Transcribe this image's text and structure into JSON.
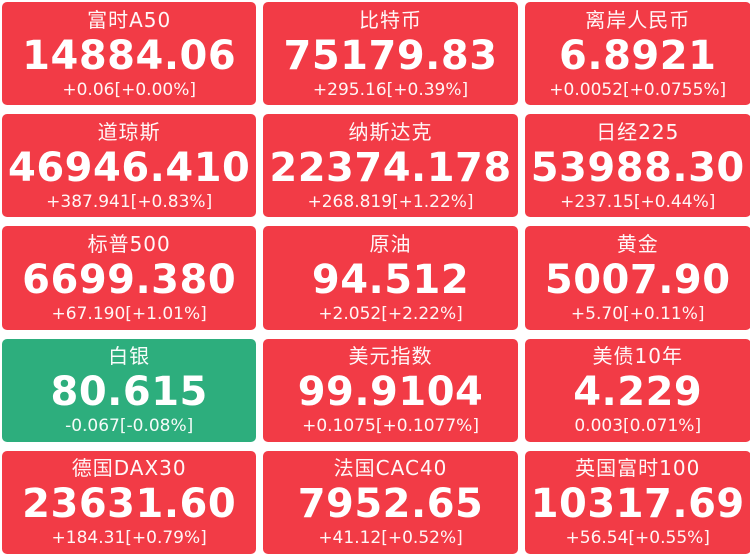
{
  "colors": {
    "up": "#f23b46",
    "down": "#2dae7d",
    "text": "#ffffff",
    "background": "#ffffff"
  },
  "tiles": [
    {
      "name": "富时A50",
      "value": "14884.06",
      "change": "+0.06[+0.00%]",
      "trend": "up"
    },
    {
      "name": "比特币",
      "value": "75179.83",
      "change": "+295.16[+0.39%]",
      "trend": "up"
    },
    {
      "name": "离岸人民币",
      "value": "6.8921",
      "change": "+0.0052[+0.0755%]",
      "trend": "up"
    },
    {
      "name": "道琼斯",
      "value": "46946.410",
      "change": "+387.941[+0.83%]",
      "trend": "up"
    },
    {
      "name": "纳斯达克",
      "value": "22374.178",
      "change": "+268.819[+1.22%]",
      "trend": "up"
    },
    {
      "name": "日经225",
      "value": "53988.30",
      "change": "+237.15[+0.44%]",
      "trend": "up"
    },
    {
      "name": "标普500",
      "value": "6699.380",
      "change": "+67.190[+1.01%]",
      "trend": "up"
    },
    {
      "name": "原油",
      "value": "94.512",
      "change": "+2.052[+2.22%]",
      "trend": "up"
    },
    {
      "name": "黄金",
      "value": "5007.90",
      "change": "+5.70[+0.11%]",
      "trend": "up"
    },
    {
      "name": "白银",
      "value": "80.615",
      "change": "-0.067[-0.08%]",
      "trend": "down"
    },
    {
      "name": "美元指数",
      "value": "99.9104",
      "change": "+0.1075[+0.1077%]",
      "trend": "up"
    },
    {
      "name": "美债10年",
      "value": "4.229",
      "change": "0.003[0.071%]",
      "trend": "up"
    },
    {
      "name": "德国DAX30",
      "value": "23631.60",
      "change": "+184.31[+0.79%]",
      "trend": "up"
    },
    {
      "name": "法国CAC40",
      "value": "7952.65",
      "change": "+41.12[+0.52%]",
      "trend": "up"
    },
    {
      "name": "英国富时100",
      "value": "10317.69",
      "change": "+56.54[+0.55%]",
      "trend": "up"
    }
  ]
}
